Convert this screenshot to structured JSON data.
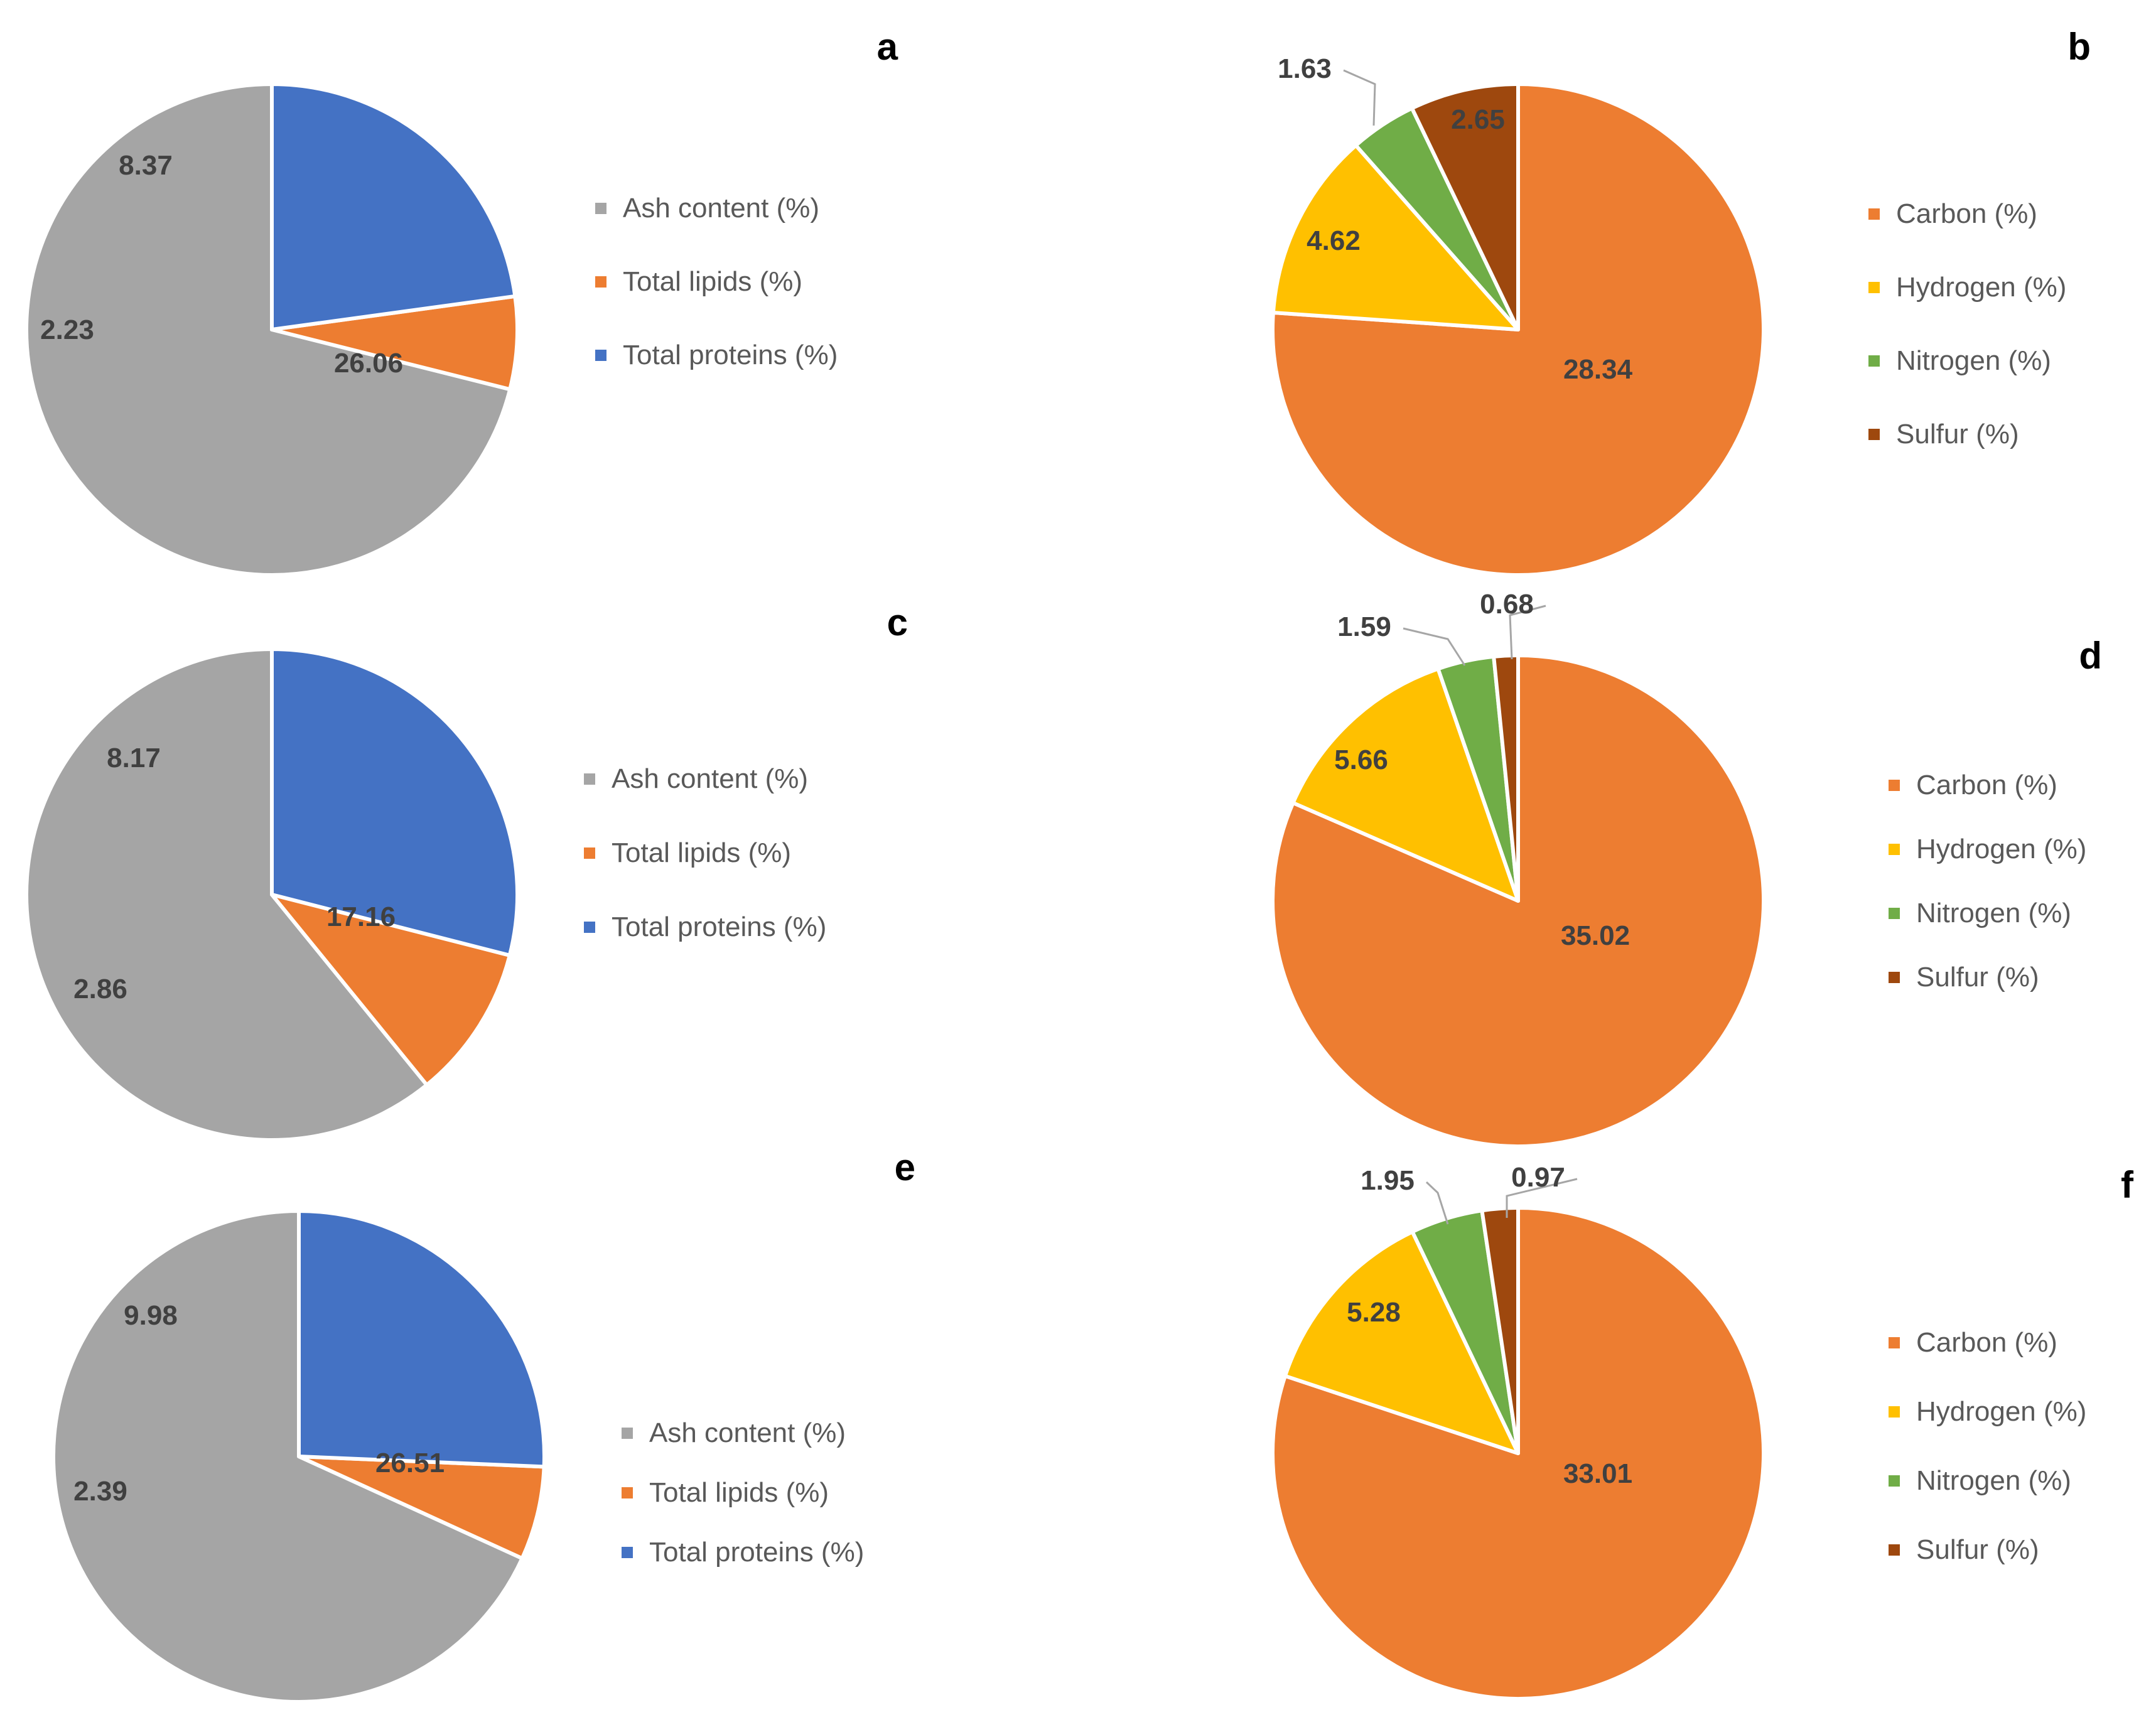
{
  "colors": {
    "ash": "#a5a5a5",
    "lipids": "#ed7d31",
    "proteins": "#4472c4",
    "carbon": "#ed7d31",
    "hydrogen": "#ffc000",
    "nitrogen": "#70ad47",
    "sulfur": "#9e480e"
  },
  "chart_data": [
    {
      "panel": "a",
      "type": "pie",
      "slices": [
        {
          "name": "Ash content (%)",
          "value": 26.06,
          "label": "26.06",
          "color": "#a5a5a5"
        },
        {
          "name": "Total lipids (%)",
          "value": 2.23,
          "label": "2.23",
          "color": "#ed7d31"
        },
        {
          "name": "Total proteins (%)",
          "value": 8.37,
          "label": "8.37",
          "color": "#4472c4"
        }
      ],
      "legend": [
        "Ash content (%)",
        "Total lipids (%)",
        "Total proteins (%)"
      ]
    },
    {
      "panel": "b",
      "type": "pie",
      "slices": [
        {
          "name": "Carbon (%)",
          "value": 28.34,
          "label": "28.34",
          "color": "#ed7d31"
        },
        {
          "name": "Hydrogen (%)",
          "value": 4.62,
          "label": "4.62",
          "color": "#ffc000"
        },
        {
          "name": "Nitrogen (%)",
          "value": 1.63,
          "label": "1.63",
          "color": "#70ad47"
        },
        {
          "name": "Sulfur (%)",
          "value": 2.65,
          "label": "2.65",
          "color": "#9e480e"
        }
      ],
      "legend": [
        "Carbon (%)",
        "Hydrogen (%)",
        "Nitrogen (%)",
        "Sulfur (%)"
      ]
    },
    {
      "panel": "c",
      "type": "pie",
      "slices": [
        {
          "name": "Ash content (%)",
          "value": 17.16,
          "label": "17.16",
          "color": "#a5a5a5"
        },
        {
          "name": "Total lipids (%)",
          "value": 2.86,
          "label": "2.86",
          "color": "#ed7d31"
        },
        {
          "name": "Total proteins (%)",
          "value": 8.17,
          "label": "8.17",
          "color": "#4472c4"
        }
      ],
      "legend": [
        "Ash content (%)",
        "Total lipids (%)",
        "Total proteins (%)"
      ]
    },
    {
      "panel": "d",
      "type": "pie",
      "slices": [
        {
          "name": "Carbon (%)",
          "value": 35.02,
          "label": "35.02",
          "color": "#ed7d31"
        },
        {
          "name": "Hydrogen (%)",
          "value": 5.66,
          "label": "5.66",
          "color": "#ffc000"
        },
        {
          "name": "Nitrogen (%)",
          "value": 1.59,
          "label": "1.59",
          "color": "#70ad47"
        },
        {
          "name": "Sulfur (%)",
          "value": 0.68,
          "label": "0.68",
          "color": "#9e480e"
        }
      ],
      "legend": [
        "Carbon (%)",
        "Hydrogen (%)",
        "Nitrogen (%)",
        "Sulfur (%)"
      ]
    },
    {
      "panel": "e",
      "type": "pie",
      "slices": [
        {
          "name": "Ash content (%)",
          "value": 26.51,
          "label": "26.51",
          "color": "#a5a5a5"
        },
        {
          "name": "Total lipids (%)",
          "value": 2.39,
          "label": "2.39",
          "color": "#ed7d31"
        },
        {
          "name": "Total proteins (%)",
          "value": 9.98,
          "label": "9.98",
          "color": "#4472c4"
        }
      ],
      "legend": [
        "Ash content (%)",
        "Total lipids (%)",
        "Total proteins (%)"
      ]
    },
    {
      "panel": "f",
      "type": "pie",
      "slices": [
        {
          "name": "Carbon (%)",
          "value": 33.01,
          "label": "33.01",
          "color": "#ed7d31"
        },
        {
          "name": "Hydrogen (%)",
          "value": 5.28,
          "label": "5.28",
          "color": "#ffc000"
        },
        {
          "name": "Nitrogen (%)",
          "value": 1.95,
          "label": "1.95",
          "color": "#70ad47"
        },
        {
          "name": "Sulfur (%)",
          "value": 0.97,
          "label": "0.97",
          "color": "#9e480e"
        }
      ],
      "legend": [
        "Carbon (%)",
        "Hydrogen (%)",
        "Nitrogen (%)",
        "Sulfur (%)"
      ]
    }
  ]
}
